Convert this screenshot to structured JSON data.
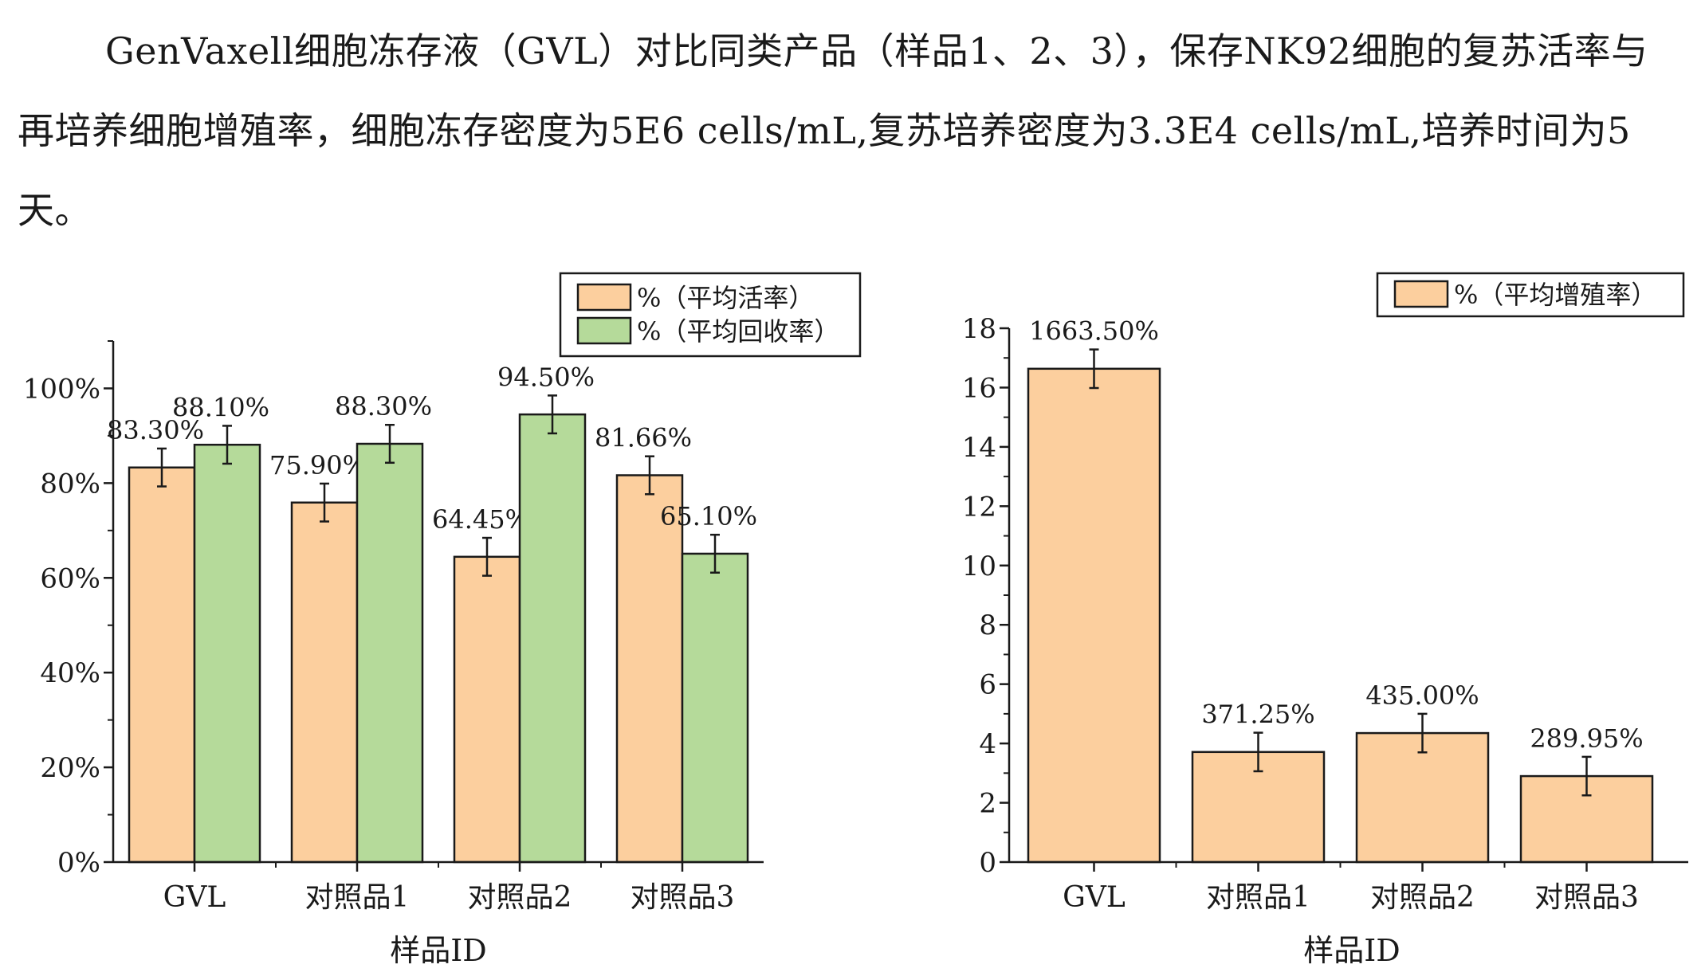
{
  "intro_text": "GenVaxell细胞冻存液（GVL）对比同类产品（样品1、2、3），保存NK92细胞的复苏活率与再培养细胞增殖率，细胞冻存密度为5E6 cells/mL,复苏培养密度为3.3E4 cells/mL,培养时间为5天。",
  "chart_data": [
    {
      "type": "bar",
      "xlabel": "样品ID",
      "ylabel": "",
      "categories": [
        "GVL",
        "对照品1",
        "对照品2",
        "对照品3"
      ],
      "ylim": [
        0,
        1.1
      ],
      "yticks": [
        0,
        0.2,
        0.4,
        0.6,
        0.8,
        1.0
      ],
      "ytick_labels": [
        "0%",
        "20%",
        "40%",
        "60%",
        "80%",
        "100%"
      ],
      "legend_position": "top-right",
      "grid": false,
      "series": [
        {
          "name": "%（平均活率）",
          "color": "#FCCF9E",
          "values": [
            0.833,
            0.759,
            0.6445,
            0.8166
          ],
          "errors": [
            0.04,
            0.04,
            0.04,
            0.04
          ],
          "labels": [
            "83.30%",
            "75.90%",
            "64.45%",
            "81.66%"
          ]
        },
        {
          "name": "%（平均回收率）",
          "color": "#B5DA9A",
          "values": [
            0.881,
            0.883,
            0.945,
            0.651
          ],
          "errors": [
            0.04,
            0.04,
            0.04,
            0.04
          ],
          "labels": [
            "88.10%",
            "88.30%",
            "94.50%",
            "65.10%"
          ]
        }
      ]
    },
    {
      "type": "bar",
      "xlabel": "样品ID",
      "ylabel": "",
      "categories": [
        "GVL",
        "对照品1",
        "对照品2",
        "对照品3"
      ],
      "ylim": [
        0,
        18
      ],
      "yticks": [
        0,
        2,
        4,
        6,
        8,
        10,
        12,
        14,
        16,
        18
      ],
      "ytick_labels": [
        "0",
        "2",
        "4",
        "6",
        "8",
        "10",
        "12",
        "14",
        "16",
        "18"
      ],
      "legend_position": "top-right",
      "grid": false,
      "series": [
        {
          "name": "%（平均增殖率）",
          "color": "#FCCF9E",
          "values": [
            16.635,
            3.7125,
            4.35,
            2.8995
          ],
          "errors": [
            0.65,
            0.65,
            0.65,
            0.65
          ],
          "labels": [
            "1663.50%",
            "371.25%",
            "435.00%",
            "289.95%"
          ]
        }
      ]
    }
  ]
}
